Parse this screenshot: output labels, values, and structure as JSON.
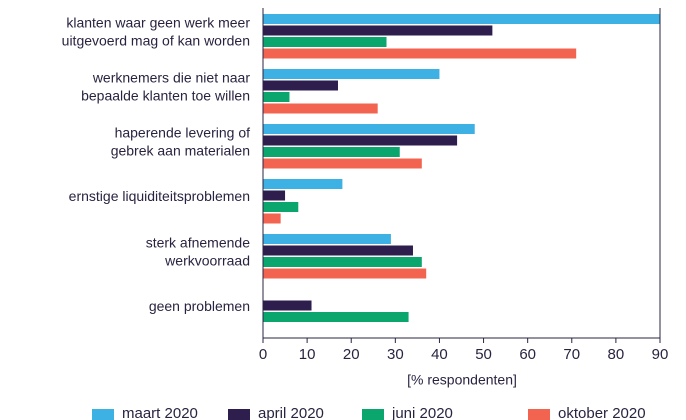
{
  "chart_data": {
    "type": "bar",
    "orientation": "horizontal",
    "categories": [
      "klanten waar geen werk meer\nuitgevoerd mag of kan worden",
      "werknemers die niet naar\nbepaalde klanten toe willen",
      "haperende levering of\ngebrek aan materialen",
      "ernstige liquiditeitsproblemen",
      "sterk afnemende\nwerkvoorraad",
      "geen problemen"
    ],
    "series": [
      {
        "name": "maart 2020",
        "color": "#3eb1e4",
        "values": [
          90,
          40,
          48,
          18,
          29,
          null
        ]
      },
      {
        "name": "april 2020",
        "color": "#2e1e4e",
        "values": [
          52,
          17,
          44,
          5,
          34,
          11
        ]
      },
      {
        "name": "juni 2020",
        "color": "#0aa66e",
        "values": [
          28,
          6,
          31,
          8,
          36,
          33
        ]
      },
      {
        "name": "oktober 2020",
        "color": "#f26450",
        "values": [
          71,
          26,
          36,
          4,
          37,
          null
        ]
      }
    ],
    "xlabel": "[% respondenten]",
    "xlim": [
      0,
      90
    ],
    "xticks": [
      0,
      10,
      20,
      30,
      40,
      50,
      60,
      70,
      80,
      90
    ],
    "legend": "bottom"
  }
}
